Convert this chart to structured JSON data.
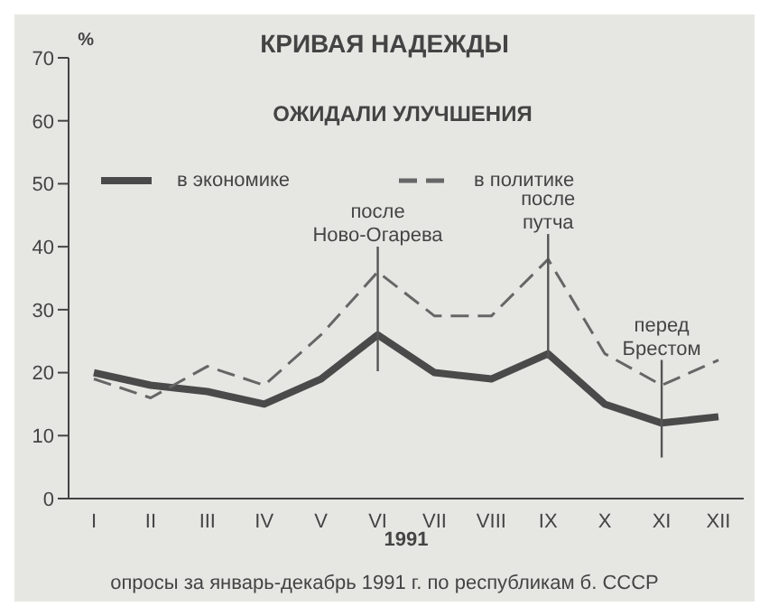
{
  "chart_data": {
    "type": "line",
    "title": "КРИВАЯ НАДЕЖДЫ",
    "subtitle": "ОЖИДАЛИ УЛУЧШЕНИЯ",
    "xlabel": "1991",
    "ylabel": "%",
    "categories": [
      "I",
      "II",
      "III",
      "IV",
      "V",
      "VI",
      "VII",
      "VIII",
      "IX",
      "X",
      "XI",
      "XII"
    ],
    "series": [
      {
        "name": "в экономике",
        "color": "#4a4a4a",
        "line_style": "solid",
        "values": [
          20,
          18,
          17,
          15,
          19,
          26,
          20,
          19,
          23,
          15,
          12,
          13
        ]
      },
      {
        "name": "в политике",
        "color": "#666666",
        "line_style": "dashed",
        "values": [
          19,
          16,
          21,
          18,
          26,
          36,
          29,
          29,
          38,
          23,
          18,
          22
        ]
      }
    ],
    "ylim": [
      0,
      70
    ],
    "yticks": [
      0,
      10,
      20,
      30,
      40,
      50,
      60,
      70
    ],
    "grid": false,
    "legend": "top left",
    "marker": "none",
    "annotations": [
      {
        "text": "после Ново-Огарева",
        "x": "VI",
        "y": 36
      },
      {
        "text": "после путча",
        "x": "IX",
        "y": 38
      },
      {
        "text": "перед Брестом",
        "x": "XI",
        "y": 18
      },
      "опросы за январь-декабрь 1991 г. по республикам б. СССР"
    ]
  }
}
